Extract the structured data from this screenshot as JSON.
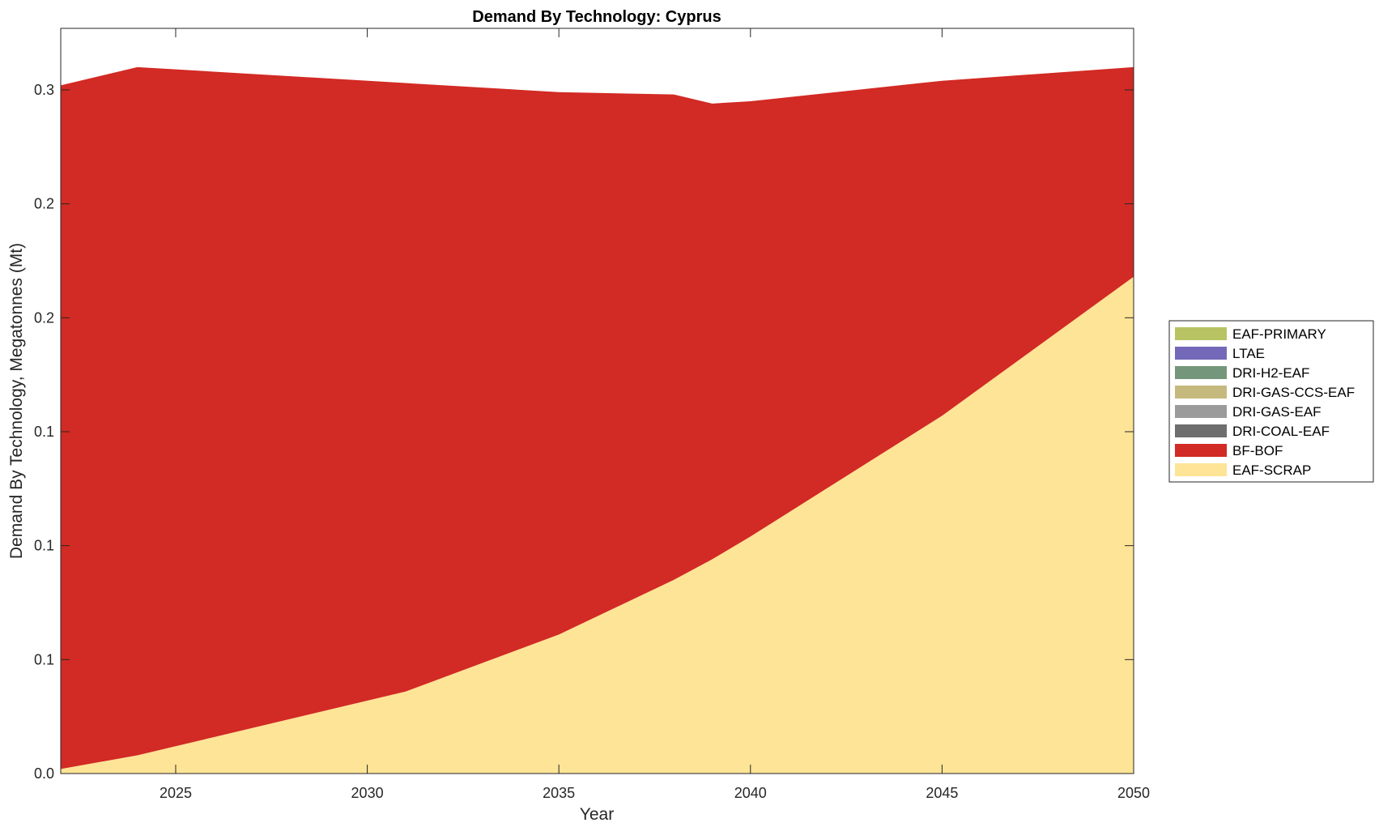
{
  "chart_data": {
    "type": "area",
    "stacked": true,
    "title": "Demand By Technology: Cyprus",
    "xlabel": "Year",
    "ylabel": "Demand By Technology, Megatonnes (Mt)",
    "xlim": [
      2022,
      2050
    ],
    "ylim": [
      0,
      0.327
    ],
    "x_ticks": [
      2025,
      2030,
      2035,
      2040,
      2045,
      2050
    ],
    "y_ticks": [
      {
        "value": 0.0,
        "label": "0.0"
      },
      {
        "value": 0.05,
        "label": "0.1"
      },
      {
        "value": 0.1,
        "label": "0.1"
      },
      {
        "value": 0.15,
        "label": "0.1"
      },
      {
        "value": 0.2,
        "label": "0.2"
      },
      {
        "value": 0.25,
        "label": "0.2"
      },
      {
        "value": 0.3,
        "label": "0.3"
      }
    ],
    "grid": false,
    "legend_position": "right",
    "x": [
      2022,
      2024,
      2025,
      2026,
      2028,
      2031,
      2035,
      2038,
      2039,
      2040,
      2045,
      2050
    ],
    "series": [
      {
        "name": "EAF-PRIMARY",
        "color": "#b8c464",
        "values": [
          0,
          0,
          0,
          0,
          0,
          0,
          0,
          0,
          0,
          0,
          0,
          0
        ]
      },
      {
        "name": "LTAE",
        "color": "#7469b9",
        "values": [
          0,
          0,
          0,
          0,
          0,
          0,
          0,
          0,
          0,
          0,
          0,
          0
        ]
      },
      {
        "name": "DRI-H2-EAF",
        "color": "#74967a",
        "values": [
          0,
          0,
          0,
          0,
          0,
          0,
          0,
          0,
          0,
          0,
          0,
          0
        ]
      },
      {
        "name": "DRI-GAS-CCS-EAF",
        "color": "#c5b97d",
        "values": [
          0,
          0,
          0,
          0,
          0,
          0,
          0,
          0,
          0,
          0,
          0,
          0
        ]
      },
      {
        "name": "DRI-GAS-EAF",
        "color": "#9b9b9b",
        "values": [
          0,
          0,
          0,
          0,
          0,
          0,
          0,
          0,
          0,
          0,
          0,
          0
        ]
      },
      {
        "name": "DRI-COAL-EAF",
        "color": "#6e6e6e",
        "values": [
          0,
          0,
          0,
          0,
          0,
          0,
          0,
          0,
          0,
          0,
          0,
          0
        ]
      },
      {
        "name": "BF-BOF",
        "color": "#d22a24",
        "values": [
          0.3,
          0.302,
          0.297,
          0.292,
          0.282,
          0.267,
          0.238,
          0.213,
          0.2,
          0.191,
          0.147,
          0.092
        ]
      },
      {
        "name": "EAF-SCRAP",
        "color": "#fee496",
        "values": [
          0.002,
          0.008,
          0.012,
          0.016,
          0.024,
          0.036,
          0.061,
          0.085,
          0.094,
          0.104,
          0.157,
          0.218
        ]
      }
    ]
  }
}
